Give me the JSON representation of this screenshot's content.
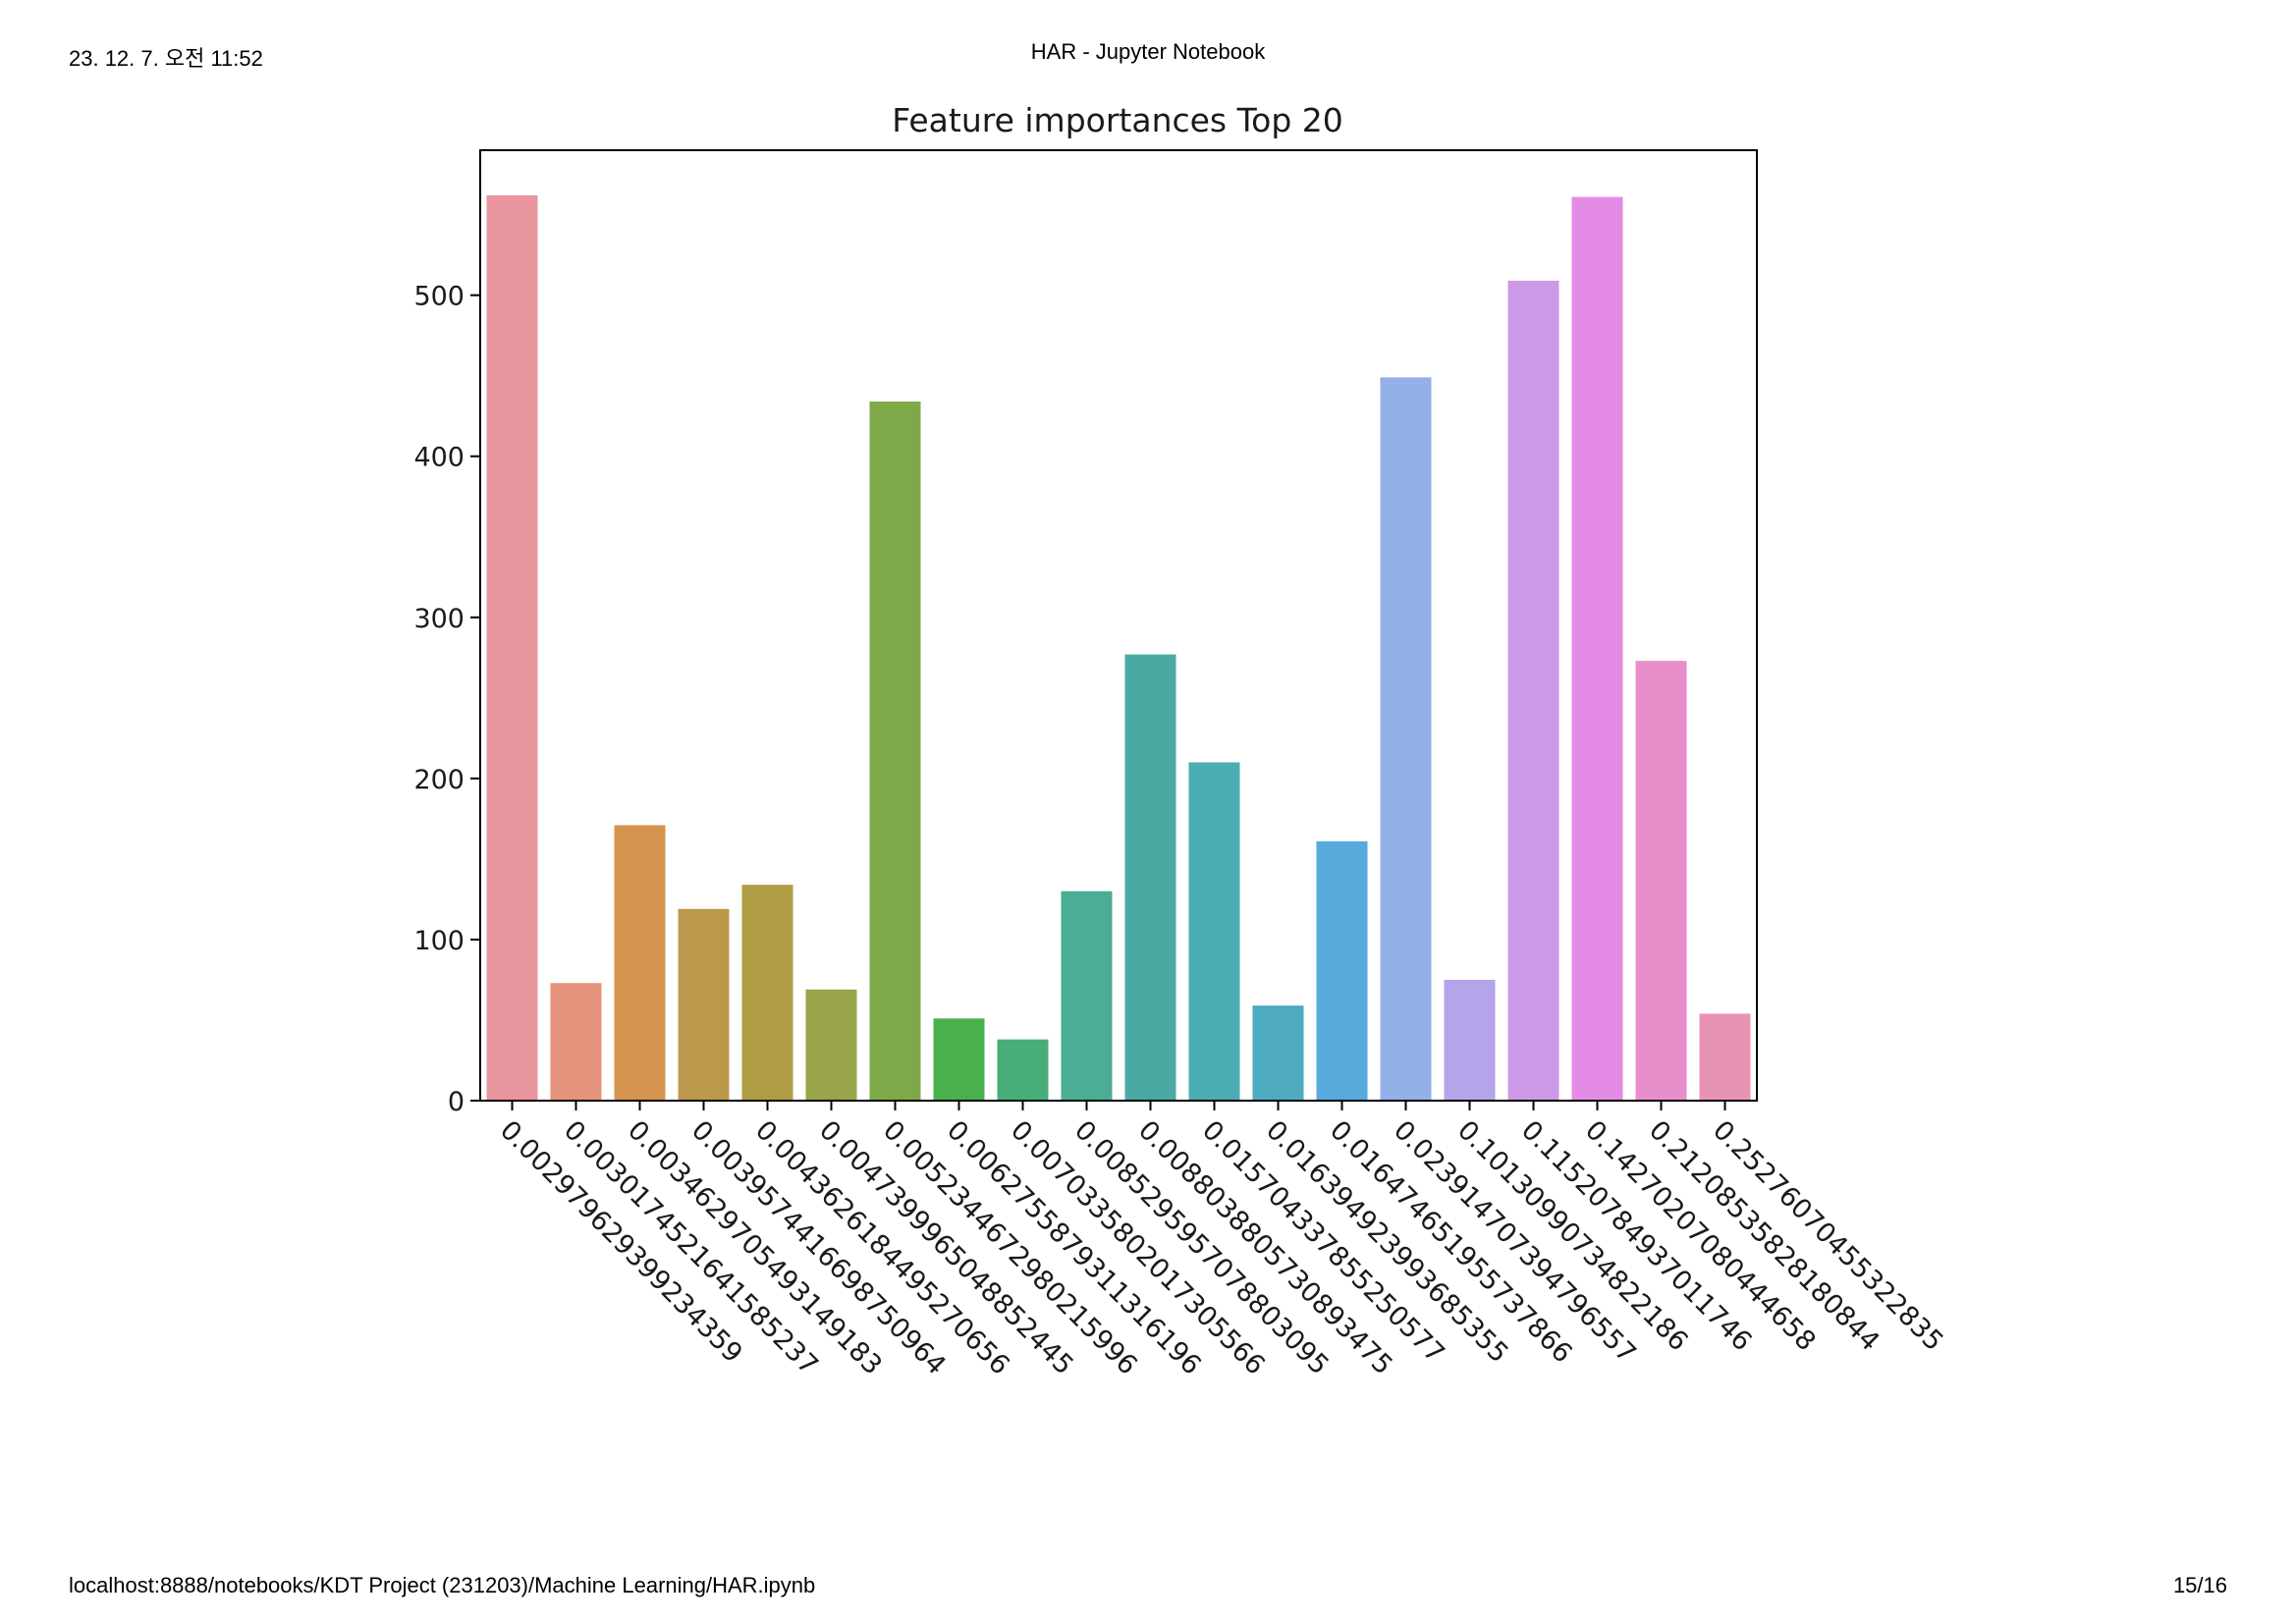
{
  "page": {
    "header_left": "23. 12. 7. 오전 11:52",
    "header_center": "HAR - Jupyter Notebook",
    "footer_left": "localhost:8888/notebooks/KDT Project (231203)/Machine Learning/HAR.ipynb",
    "footer_right": "15/16"
  },
  "chart_data": {
    "type": "bar",
    "title": "Feature importances Top 20",
    "xlabel": "",
    "ylabel": "",
    "ylim": [
      0,
      590
    ],
    "yticks": [
      0,
      100,
      200,
      300,
      400,
      500
    ],
    "grid": false,
    "categories": [
      "0.002979629399234359",
      "0.0030174521641585237",
      "0.0034629705493149183",
      "0.0039574416698750964",
      "0.0043626184495270656",
      "0.0047399965048852445",
      "0.0052344672980215996",
      "0.0062755879311316196",
      "0.0070335802017305566",
      "0.0085295957078803095",
      "0.0088038805730893475",
      "0.015704337855250577",
      "0.016394923993685355",
      "0.016474651955737866",
      "0.023914707394796557",
      "0.10130990734822186",
      "0.11520784937011746",
      "0.14270207080444658",
      "0.21208535828180844",
      "0.25276070455322835"
    ],
    "values": [
      562,
      73,
      171,
      119,
      134,
      69,
      434,
      51,
      38,
      130,
      277,
      210,
      59,
      161,
      449,
      75,
      509,
      561,
      273,
      54
    ],
    "colors": [
      "#e8959e",
      "#e6937e",
      "#d59450",
      "#bc984c",
      "#ae9d44",
      "#9aa44a",
      "#7ea949",
      "#49b04c",
      "#47ae7a",
      "#4aad94",
      "#4aaaa2",
      "#4cacb3",
      "#4eaabf",
      "#56aadc",
      "#94b0e8",
      "#b5a4ea",
      "#cc99e6",
      "#e48be5",
      "#e88ecb",
      "#e893b5"
    ]
  }
}
